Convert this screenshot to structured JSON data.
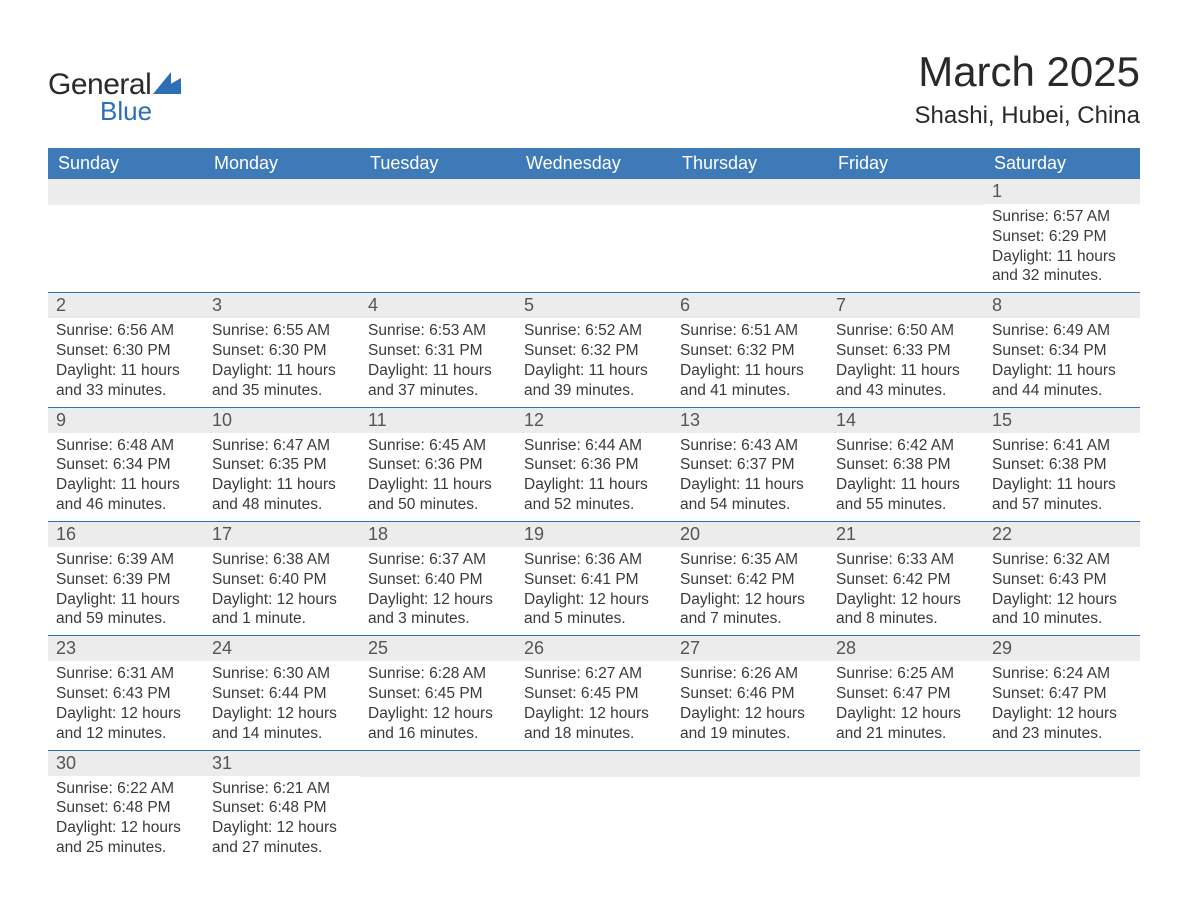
{
  "brand": {
    "line1": "General",
    "line2": "Blue",
    "logo_color": "#2d6fb5",
    "text_color": "#2a2a2a"
  },
  "title": "March 2025",
  "location": "Shashi, Hubei, China",
  "header_bg": "#3e7ab8",
  "daynum_bg": "#ececec",
  "row_border": "#2d6fb5",
  "weekdays": [
    "Sunday",
    "Monday",
    "Tuesday",
    "Wednesday",
    "Thursday",
    "Friday",
    "Saturday"
  ],
  "weeks": [
    [
      null,
      null,
      null,
      null,
      null,
      null,
      {
        "n": "1",
        "sunrise": "6:57 AM",
        "sunset": "6:29 PM",
        "dayh": "11",
        "daym": "32"
      }
    ],
    [
      {
        "n": "2",
        "sunrise": "6:56 AM",
        "sunset": "6:30 PM",
        "dayh": "11",
        "daym": "33"
      },
      {
        "n": "3",
        "sunrise": "6:55 AM",
        "sunset": "6:30 PM",
        "dayh": "11",
        "daym": "35"
      },
      {
        "n": "4",
        "sunrise": "6:53 AM",
        "sunset": "6:31 PM",
        "dayh": "11",
        "daym": "37"
      },
      {
        "n": "5",
        "sunrise": "6:52 AM",
        "sunset": "6:32 PM",
        "dayh": "11",
        "daym": "39"
      },
      {
        "n": "6",
        "sunrise": "6:51 AM",
        "sunset": "6:32 PM",
        "dayh": "11",
        "daym": "41"
      },
      {
        "n": "7",
        "sunrise": "6:50 AM",
        "sunset": "6:33 PM",
        "dayh": "11",
        "daym": "43"
      },
      {
        "n": "8",
        "sunrise": "6:49 AM",
        "sunset": "6:34 PM",
        "dayh": "11",
        "daym": "44"
      }
    ],
    [
      {
        "n": "9",
        "sunrise": "6:48 AM",
        "sunset": "6:34 PM",
        "dayh": "11",
        "daym": "46"
      },
      {
        "n": "10",
        "sunrise": "6:47 AM",
        "sunset": "6:35 PM",
        "dayh": "11",
        "daym": "48"
      },
      {
        "n": "11",
        "sunrise": "6:45 AM",
        "sunset": "6:36 PM",
        "dayh": "11",
        "daym": "50"
      },
      {
        "n": "12",
        "sunrise": "6:44 AM",
        "sunset": "6:36 PM",
        "dayh": "11",
        "daym": "52"
      },
      {
        "n": "13",
        "sunrise": "6:43 AM",
        "sunset": "6:37 PM",
        "dayh": "11",
        "daym": "54"
      },
      {
        "n": "14",
        "sunrise": "6:42 AM",
        "sunset": "6:38 PM",
        "dayh": "11",
        "daym": "55"
      },
      {
        "n": "15",
        "sunrise": "6:41 AM",
        "sunset": "6:38 PM",
        "dayh": "11",
        "daym": "57"
      }
    ],
    [
      {
        "n": "16",
        "sunrise": "6:39 AM",
        "sunset": "6:39 PM",
        "dayh": "11",
        "daym": "59"
      },
      {
        "n": "17",
        "sunrise": "6:38 AM",
        "sunset": "6:40 PM",
        "dayh": "12",
        "daym": "1"
      },
      {
        "n": "18",
        "sunrise": "6:37 AM",
        "sunset": "6:40 PM",
        "dayh": "12",
        "daym": "3"
      },
      {
        "n": "19",
        "sunrise": "6:36 AM",
        "sunset": "6:41 PM",
        "dayh": "12",
        "daym": "5"
      },
      {
        "n": "20",
        "sunrise": "6:35 AM",
        "sunset": "6:42 PM",
        "dayh": "12",
        "daym": "7"
      },
      {
        "n": "21",
        "sunrise": "6:33 AM",
        "sunset": "6:42 PM",
        "dayh": "12",
        "daym": "8"
      },
      {
        "n": "22",
        "sunrise": "6:32 AM",
        "sunset": "6:43 PM",
        "dayh": "12",
        "daym": "10"
      }
    ],
    [
      {
        "n": "23",
        "sunrise": "6:31 AM",
        "sunset": "6:43 PM",
        "dayh": "12",
        "daym": "12"
      },
      {
        "n": "24",
        "sunrise": "6:30 AM",
        "sunset": "6:44 PM",
        "dayh": "12",
        "daym": "14"
      },
      {
        "n": "25",
        "sunrise": "6:28 AM",
        "sunset": "6:45 PM",
        "dayh": "12",
        "daym": "16"
      },
      {
        "n": "26",
        "sunrise": "6:27 AM",
        "sunset": "6:45 PM",
        "dayh": "12",
        "daym": "18"
      },
      {
        "n": "27",
        "sunrise": "6:26 AM",
        "sunset": "6:46 PM",
        "dayh": "12",
        "daym": "19"
      },
      {
        "n": "28",
        "sunrise": "6:25 AM",
        "sunset": "6:47 PM",
        "dayh": "12",
        "daym": "21"
      },
      {
        "n": "29",
        "sunrise": "6:24 AM",
        "sunset": "6:47 PM",
        "dayh": "12",
        "daym": "23"
      }
    ],
    [
      {
        "n": "30",
        "sunrise": "6:22 AM",
        "sunset": "6:48 PM",
        "dayh": "12",
        "daym": "25"
      },
      {
        "n": "31",
        "sunrise": "6:21 AM",
        "sunset": "6:48 PM",
        "dayh": "12",
        "daym": "27"
      },
      null,
      null,
      null,
      null,
      null
    ]
  ],
  "labels": {
    "sunrise_prefix": "Sunrise: ",
    "sunset_prefix": "Sunset: ",
    "daylight_prefix": "Daylight: ",
    "hours_word": " hours",
    "and_word": "and ",
    "minutes_suffix_one": " minute.",
    "minutes_suffix": " minutes."
  }
}
